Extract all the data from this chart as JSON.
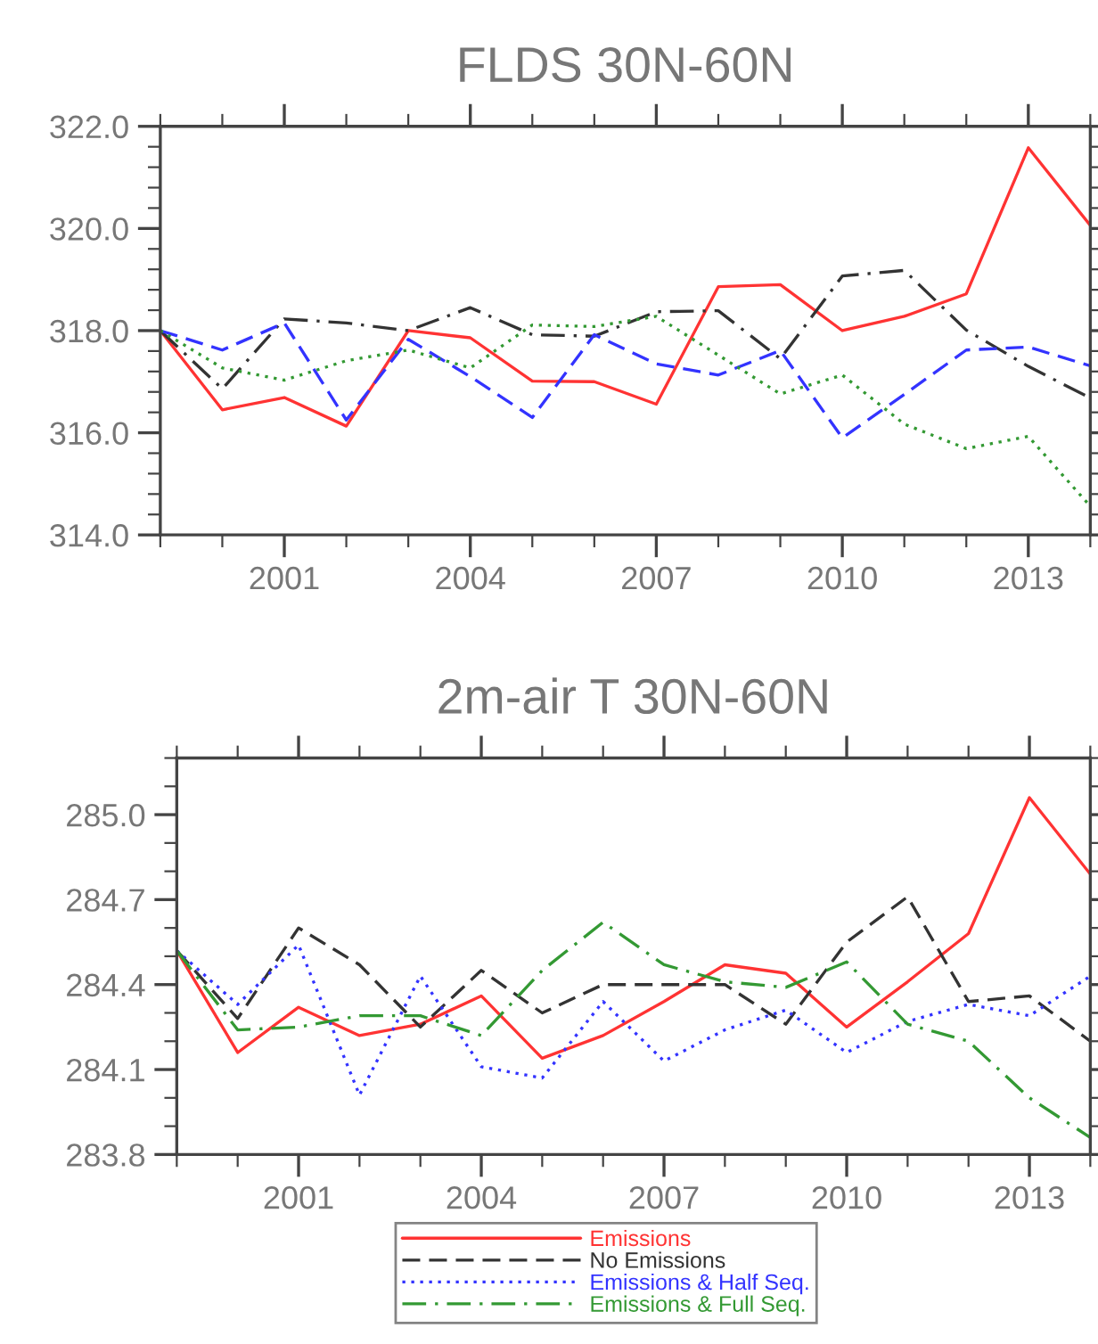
{
  "chart_data": [
    {
      "type": "line",
      "title": "FLDS 30N-60N",
      "x": [
        1999,
        2000,
        2001,
        2002,
        2003,
        2004,
        2005,
        2006,
        2007,
        2008,
        2009,
        2010,
        2011,
        2012,
        2013,
        2014
      ],
      "xlim": [
        1999,
        2014
      ],
      "xticks": [
        2001,
        2004,
        2007,
        2010,
        2013
      ],
      "ylim": [
        314,
        322
      ],
      "yticks": [
        {
          "value": 314,
          "label": "314.0"
        },
        {
          "value": 316,
          "label": "316.0"
        },
        {
          "value": 318,
          "label": "318.0"
        },
        {
          "value": 320,
          "label": "320.0"
        },
        {
          "value": 322,
          "label": "322.0"
        }
      ],
      "grid": false,
      "legend": false,
      "series": [
        {
          "color": "#ff3333",
          "line_style": "solid",
          "values": [
            318.0,
            316.45,
            316.69,
            316.13,
            318.0,
            317.86,
            317.01,
            317.0,
            316.56,
            318.86,
            318.9,
            318.0,
            318.28,
            318.72,
            321.58,
            320.06
          ]
        },
        {
          "color": "#333333",
          "line_style": "dashdot",
          "values": [
            318.0,
            316.86,
            318.23,
            318.15,
            318.0,
            318.45,
            317.92,
            317.89,
            318.37,
            318.39,
            317.45,
            319.07,
            319.18,
            318.01,
            317.3,
            316.68
          ]
        },
        {
          "color": "#3333ff",
          "line_style": "dashed",
          "values": [
            318.0,
            317.62,
            318.15,
            316.25,
            317.83,
            317.1,
            316.3,
            317.92,
            317.35,
            317.13,
            317.61,
            315.9,
            316.75,
            317.62,
            317.68,
            317.31
          ]
        },
        {
          "color": "#339933",
          "line_style": "dotted",
          "values": [
            318.0,
            317.27,
            317.03,
            317.41,
            317.62,
            317.27,
            318.11,
            318.08,
            318.28,
            317.52,
            316.76,
            317.13,
            316.17,
            315.69,
            315.93,
            314.56
          ]
        }
      ]
    },
    {
      "type": "line",
      "title": "2m-air T 30N-60N",
      "x": [
        1999,
        2000,
        2001,
        2002,
        2003,
        2004,
        2005,
        2006,
        2007,
        2008,
        2009,
        2010,
        2011,
        2012,
        2013,
        2014
      ],
      "xlim": [
        1999,
        2014
      ],
      "xticks": [
        2001,
        2004,
        2007,
        2010,
        2013
      ],
      "ylim": [
        283.8,
        285.2
      ],
      "yticks": [
        283.8,
        284.1,
        284.4,
        284.7,
        {
          "value": 285.0,
          "label": "285.0"
        }
      ],
      "grid": false,
      "legend": "bottom",
      "series": [
        {
          "name": "Emissions",
          "color": "#ff3333",
          "line_style": "solid",
          "values": [
            284.52,
            284.16,
            284.32,
            284.22,
            284.26,
            284.36,
            284.14,
            284.22,
            284.34,
            284.47,
            284.44,
            284.25,
            284.41,
            284.58,
            285.06,
            284.79
          ]
        },
        {
          "name": "No Emissions",
          "color": "#333333",
          "line_style": "dashed",
          "values": [
            284.52,
            284.28,
            284.6,
            284.47,
            284.25,
            284.45,
            284.3,
            284.4,
            284.4,
            284.4,
            284.26,
            284.55,
            284.71,
            284.34,
            284.36,
            284.2
          ]
        },
        {
          "name": "Emissions & Half Seq.",
          "color": "#3333ff",
          "line_style": "dotted",
          "values": [
            284.52,
            284.33,
            284.54,
            284.01,
            284.43,
            284.11,
            284.07,
            284.34,
            284.13,
            284.24,
            284.31,
            284.16,
            284.27,
            284.33,
            284.29,
            284.43
          ]
        },
        {
          "name": "Emissions & Full Seq.",
          "color": "#339933",
          "line_style": "dashdot",
          "values": [
            284.52,
            284.24,
            284.25,
            284.29,
            284.29,
            284.22,
            284.45,
            284.62,
            284.47,
            284.41,
            284.39,
            284.48,
            284.26,
            284.2,
            284.0,
            283.86
          ]
        }
      ]
    }
  ]
}
